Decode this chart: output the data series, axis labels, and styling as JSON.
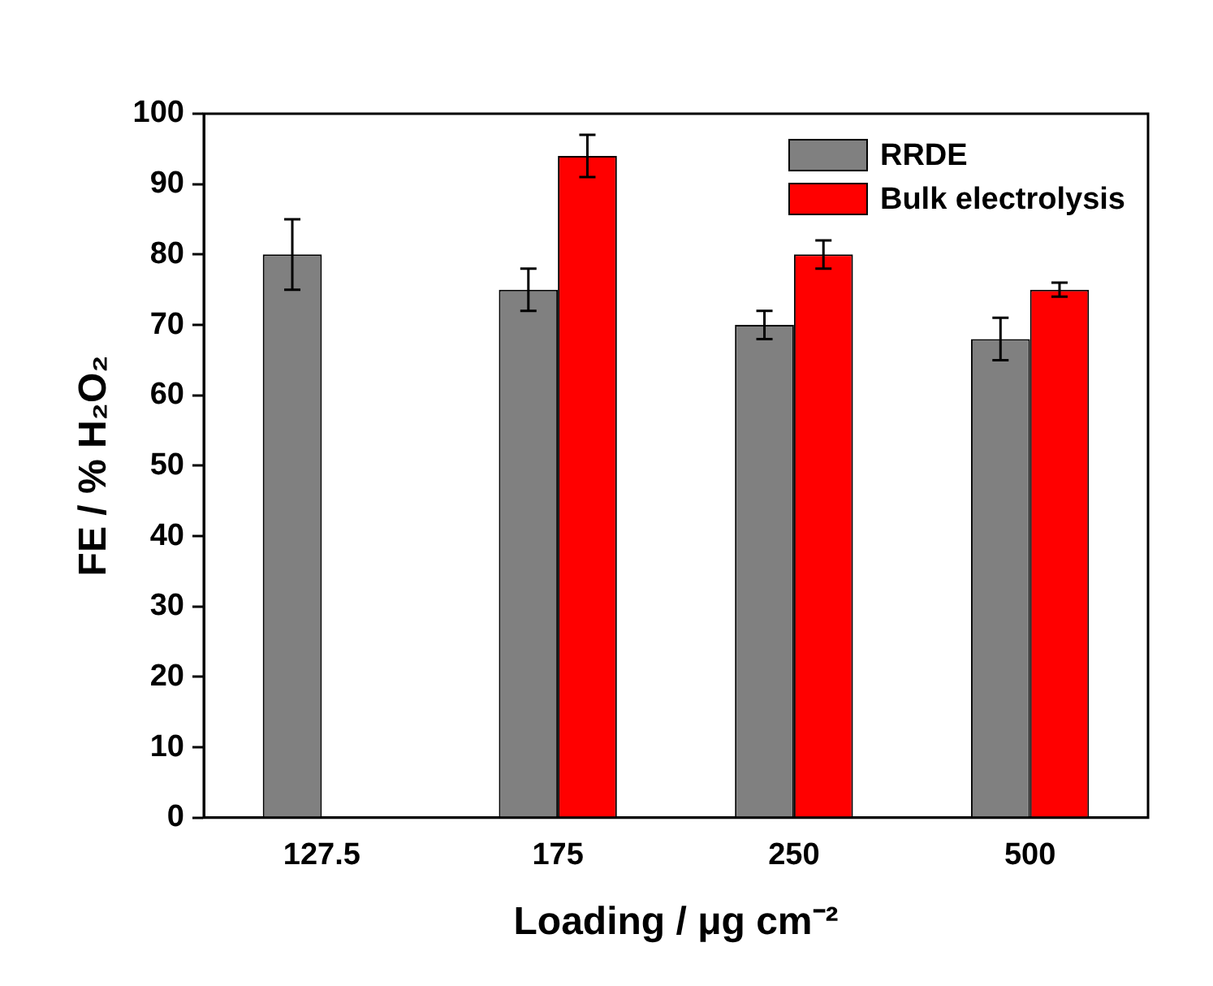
{
  "chart_data": {
    "type": "bar",
    "xlabel": "Loading / μg cm⁻²",
    "ylabel": "FE / % H₂O₂",
    "categories": [
      "127.5",
      "175",
      "250",
      "500"
    ],
    "series": [
      {
        "name": "RRDE",
        "color": "#808080",
        "values": [
          80,
          75,
          70,
          68
        ],
        "errors": [
          5,
          3,
          2,
          3
        ]
      },
      {
        "name": "Bulk electrolysis",
        "color": "#ff0000",
        "values": [
          null,
          94,
          80,
          75
        ],
        "errors": [
          null,
          3,
          2,
          1
        ]
      }
    ],
    "ylim": [
      0,
      100
    ],
    "yticks": [
      0,
      10,
      20,
      30,
      40,
      50,
      60,
      70,
      80,
      90,
      100
    ],
    "grid": false,
    "legend": "top right"
  }
}
